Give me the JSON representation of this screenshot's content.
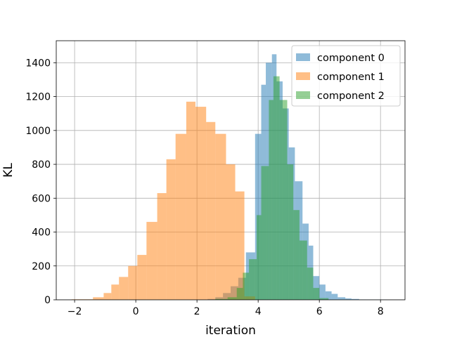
{
  "chart_data": {
    "type": "histogram",
    "xlabel": "iteration",
    "ylabel": "KL",
    "xlim": [
      -2.6,
      8.8
    ],
    "ylim": [
      0,
      1530
    ],
    "xticks": [
      -2,
      0,
      2,
      4,
      6,
      8
    ],
    "xtick_labels": [
      "−2",
      "0",
      "2",
      "4",
      "6",
      "8"
    ],
    "yticks": [
      0,
      200,
      400,
      600,
      800,
      1000,
      1200,
      1400
    ],
    "ytick_labels": [
      "0",
      "200",
      "400",
      "600",
      "800",
      "1000",
      "1200",
      "1400"
    ],
    "grid": true,
    "legend_position": "top-right",
    "alpha": 0.5,
    "series": [
      {
        "name": "component 0",
        "color": "#1f77b4",
        "bin_edges": [
          2.1,
          2.35,
          2.6,
          2.85,
          3.1,
          3.35,
          3.6,
          3.9,
          4.1,
          4.25,
          4.45,
          4.6,
          4.8,
          5.0,
          5.2,
          5.45,
          5.65,
          5.8,
          6.0,
          6.2,
          6.4,
          6.6,
          6.85,
          7.05,
          7.3,
          7.5,
          8.2
        ],
        "counts": [
          2,
          5,
          15,
          40,
          80,
          130,
          280,
          980,
          1270,
          1400,
          1450,
          1290,
          1130,
          900,
          700,
          450,
          320,
          140,
          90,
          50,
          35,
          15,
          8,
          5,
          2,
          1
        ]
      },
      {
        "name": "component 1",
        "color": "#ff7f0e",
        "bin_edges": [
          -2.1,
          -1.4,
          -1.05,
          -0.8,
          -0.55,
          -0.25,
          0.05,
          0.35,
          0.7,
          1.0,
          1.3,
          1.65,
          1.95,
          2.3,
          2.6,
          2.95,
          3.25,
          3.55,
          3.9
        ],
        "counts": [
          3,
          15,
          40,
          90,
          135,
          200,
          265,
          460,
          630,
          830,
          980,
          1170,
          1140,
          1050,
          980,
          800,
          640,
          20
        ]
      },
      {
        "name": "component 2",
        "color": "#2ca02c",
        "bin_edges": [
          2.6,
          3.0,
          3.3,
          3.5,
          3.7,
          3.95,
          4.1,
          4.35,
          4.5,
          4.7,
          4.95,
          5.15,
          5.35,
          5.6,
          5.8,
          6.0,
          6.3
        ],
        "counts": [
          5,
          15,
          70,
          160,
          240,
          500,
          790,
          1180,
          1320,
          1180,
          800,
          530,
          350,
          190,
          70,
          10
        ]
      }
    ]
  }
}
